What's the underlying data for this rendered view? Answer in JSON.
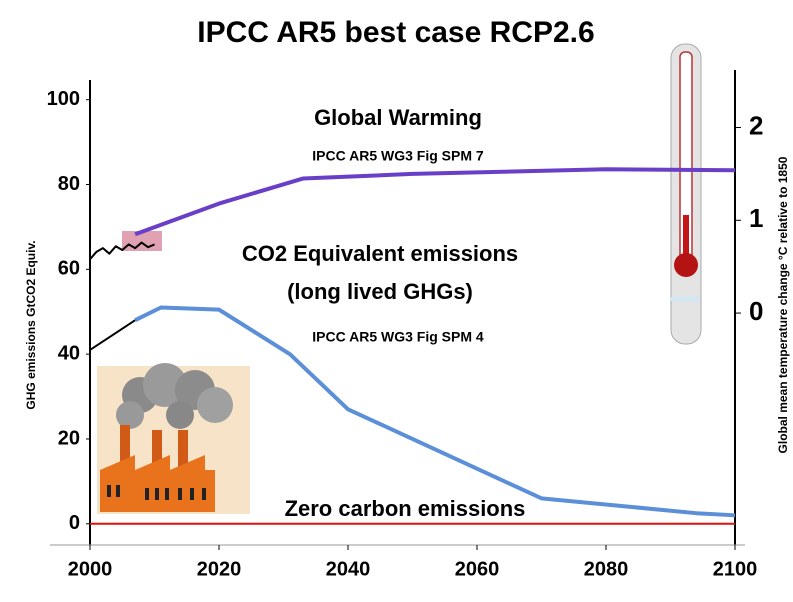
{
  "chart_data": {
    "type": "line",
    "title": "IPCC AR5 best case RCP2.6",
    "y_label": "GHG emissions GtCO2 Equiv.",
    "y2_label": "Global mean temperature change °C relative to 1850",
    "annotations": [
      "Global Warming",
      "IPCC AR5 WG3 Fig SPM 7",
      "CO2 Equivalent emissions",
      "(long lived GHGs)",
      "IPCC AR5 WG3 Fig SPM 4",
      "Zero carbon emissions"
    ],
    "xlim": [
      2000,
      2100
    ],
    "xticks": [
      2000,
      2020,
      2040,
      2060,
      2080,
      2100
    ],
    "ylim": [
      -5,
      107
    ],
    "yticks": [
      0,
      20,
      40,
      60,
      80,
      100
    ],
    "y2lim": [
      -2.5,
      2.62
    ],
    "y2ticks": [
      0,
      1,
      2
    ],
    "series": [
      {
        "color": "#000000",
        "x": [
          2000,
          2007
        ],
        "values": [
          41,
          48
        ]
      },
      {
        "color": "#5b8fd8",
        "x": [
          2007,
          2011,
          2020,
          2031,
          2040,
          2070,
          2094,
          2100
        ],
        "values": [
          48,
          51,
          50.5,
          40,
          27,
          6,
          2.5,
          2
        ]
      },
      {
        "color": "#dd1111",
        "x": [
          2000,
          2100
        ],
        "values": [
          0,
          0
        ]
      },
      {
        "color": "#000000",
        "axis": "y2",
        "x": [
          2000,
          2001,
          2002,
          2003,
          2004,
          2005,
          2006,
          2007,
          2008,
          2009,
          2010
        ],
        "values": [
          0.58,
          0.66,
          0.7,
          0.64,
          0.72,
          0.68,
          0.74,
          0.7,
          0.76,
          0.71,
          0.74
        ]
      },
      {
        "color": "#6a3fc8",
        "axis": "y2",
        "x": [
          2007,
          2020,
          2033,
          2050,
          2080,
          2100
        ],
        "values": [
          0.85,
          1.18,
          1.45,
          1.5,
          1.55,
          1.54
        ]
      }
    ]
  }
}
